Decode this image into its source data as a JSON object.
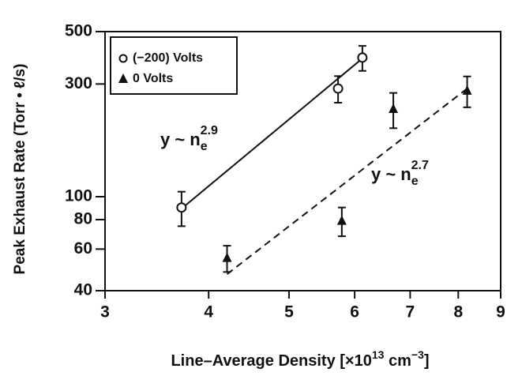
{
  "chart_data": {
    "type": "scatter",
    "xlabel": [
      "Line–Average Density [×10",
      "13",
      " cm",
      "−3",
      "]"
    ],
    "ylabel": "Peak Exhaust Rate (Torr • ℓ/s)",
    "xlim": [
      3,
      9
    ],
    "ylim": [
      40,
      500
    ],
    "xscale": "log",
    "yscale": "log",
    "xticks": [
      3,
      4,
      5,
      6,
      7,
      8,
      9
    ],
    "yticks": [
      40,
      60,
      80,
      100,
      300,
      500
    ],
    "legend": "upper left",
    "series": [
      {
        "name": "(−200) Volts",
        "marker": "circle",
        "color": "#111",
        "x": [
          3.71,
          5.73,
          6.13
        ],
        "values": [
          90,
          287,
          388
        ],
        "errors": [
          15,
          37,
          47
        ]
      },
      {
        "name": "0 Volts",
        "marker": "triangle",
        "color": "#111",
        "x": [
          4.21,
          5.79,
          6.68,
          8.2
        ],
        "values": [
          55,
          79,
          235,
          281
        ],
        "errors": [
          7,
          11,
          40,
          42
        ]
      }
    ],
    "lines": [
      {
        "x": [
          3.71,
          6.13
        ],
        "values": [
          89,
          385
        ],
        "style": "solid"
      },
      {
        "x": [
          4.21,
          8.2
        ],
        "values": [
          47,
          287
        ],
        "style": "dashed"
      }
    ],
    "annotations": [
      {
        "text": "y ~ n",
        "sub": "e",
        "sup": "2.9"
      },
      {
        "text": "y ~ n",
        "sub": "e",
        "sup": "2.7"
      }
    ]
  }
}
